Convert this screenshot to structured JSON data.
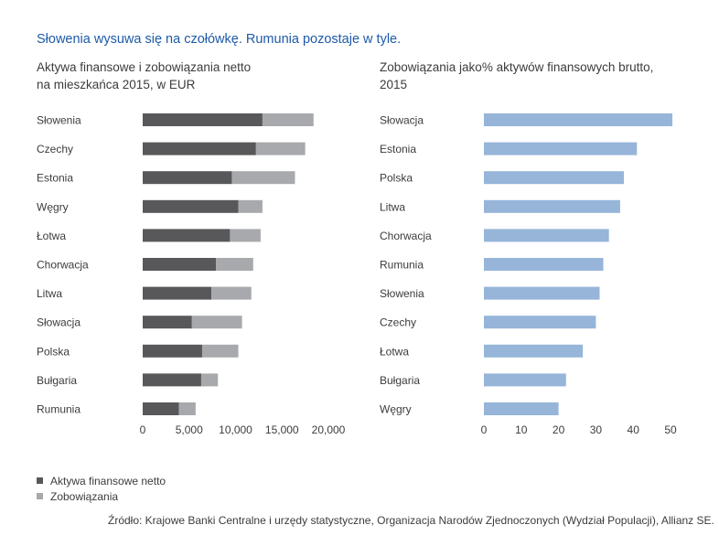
{
  "title": "Słowenia wysuwa się na czołówkę. Rumunia pozostaje w tyle.",
  "left_panel": {
    "subtitle_line1": "Aktywa finansowe i zobowiązania netto",
    "subtitle_line2": "na mieszkańca 2015, w EUR"
  },
  "right_panel": {
    "subtitle_line1": "Zobowiązania jako% aktywów finansowych brutto,",
    "subtitle_line2": "2015"
  },
  "legend": {
    "items": [
      {
        "label": "Aktywa finansowe netto",
        "color": "#58585a"
      },
      {
        "label": "Zobowiązania",
        "color": "#a7a9ac"
      }
    ]
  },
  "source": "Źródło: Krajowe Banki Centralne i urzędy statystyczne, Organizacja Narodów Zjednoczonych (Wydział Populacji), Allianz SE.",
  "colors": {
    "title": "#1e5aa8",
    "net_assets": "#58585a",
    "liabilities": "#a7a9ac",
    "right_bars": "#96b5d9"
  },
  "chart_data": [
    {
      "type": "bar",
      "orientation": "horizontal",
      "stacked": true,
      "categories": [
        "Słowenia",
        "Czechy",
        "Estonia",
        "Węgry",
        "Łotwa",
        "Chorwacja",
        "Litwa",
        "Słowacja",
        "Polska",
        "Bułgaria",
        "Rumunia"
      ],
      "series": [
        {
          "name": "Aktywa finansowe netto",
          "values": [
            12900,
            12200,
            9600,
            10300,
            9400,
            7900,
            7400,
            5300,
            6400,
            6300,
            3900
          ]
        },
        {
          "name": "Zobowiązania",
          "values": [
            5500,
            5300,
            6800,
            2600,
            3300,
            4000,
            4300,
            5400,
            3900,
            1800,
            1800
          ]
        }
      ],
      "xlim": [
        0,
        20000
      ],
      "xticks": [
        "0",
        "5,000",
        "10,000",
        "15,000",
        "20,000"
      ],
      "xtick_values": [
        0,
        5000,
        10000,
        15000,
        20000
      ]
    },
    {
      "type": "bar",
      "orientation": "horizontal",
      "categories": [
        "Słowacja",
        "Estonia",
        "Polska",
        "Litwa",
        "Chorwacja",
        "Rumunia",
        "Słowenia",
        "Czechy",
        "Łotwa",
        "Bułgaria",
        "Węgry"
      ],
      "values": [
        50.5,
        41,
        37.5,
        36.5,
        33.5,
        32,
        31,
        30,
        26.5,
        22,
        20
      ],
      "xlim": [
        0,
        50
      ],
      "xticks": [
        "0",
        "10",
        "20",
        "30",
        "40",
        "50"
      ],
      "xtick_values": [
        0,
        10,
        20,
        30,
        40,
        50
      ]
    }
  ]
}
